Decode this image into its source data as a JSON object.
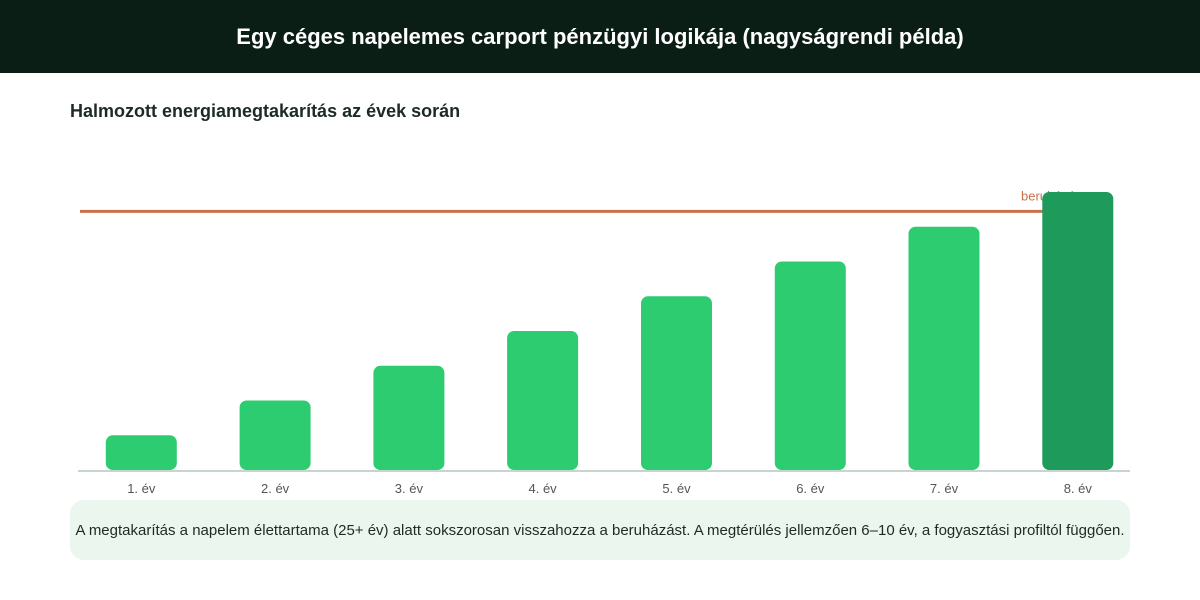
{
  "header": {
    "title": "Egy céges napelemes carport pénzügyi logikája (nagyságrendi példa)"
  },
  "colors": {
    "header_bg": "#0b1e16",
    "bar": "#2ecc71",
    "bar_highlight": "#1e9a5a",
    "threshold_line": "#c8724a",
    "axis": "#c8d4d0",
    "tick_label": "#555555",
    "note_bg": "#eaf6ee"
  },
  "chart_data": {
    "type": "bar",
    "title": "Halmozott energiamegtakarítás az évek során",
    "categories": [
      "1. év",
      "2. év",
      "3. év",
      "4. év",
      "5. év",
      "6. év",
      "7. év",
      "8. év"
    ],
    "values": [
      1,
      2,
      3,
      4,
      5,
      6,
      7,
      8
    ],
    "highlighted_index": 7,
    "reference_line": {
      "value": 7.5,
      "label": "beruházás"
    },
    "ylim": [
      0,
      8
    ],
    "xlabel": "",
    "ylabel": "",
    "grid": false,
    "legend": "none"
  },
  "note": {
    "text": "A megtakarítás a napelem élettartama (25+ év) alatt sokszorosan visszahozza a beruházást. A megtérülés jellemzően 6–10 év, a fogyasztási profiltól függően."
  }
}
